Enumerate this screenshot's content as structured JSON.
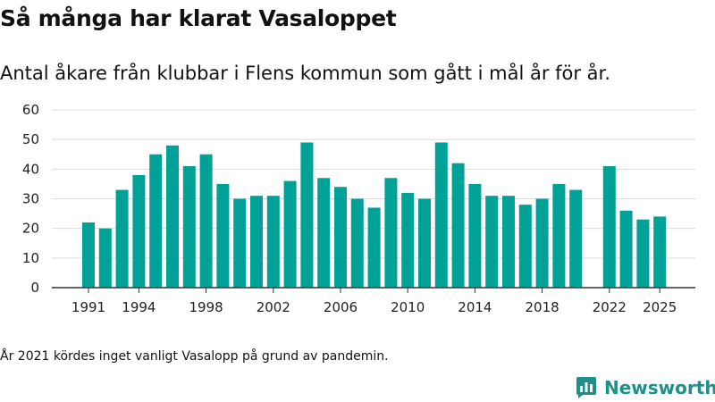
{
  "header": {
    "title": "Så många har klarat Vasaloppet",
    "subtitle": "Antal åkare från klubbar i Flens kommun som gått i mål år för år."
  },
  "footnote": "År 2021 kördes inget vanligt Vasalopp på grund av pandemin.",
  "brand": {
    "name": "Newsworthy",
    "icon": "newsworthy-logo-icon",
    "color": "#1f8f89"
  },
  "chart_data": {
    "type": "bar",
    "title": "",
    "xlabel": "",
    "ylabel": "",
    "ylim": [
      0,
      60
    ],
    "yticks": [
      0,
      10,
      20,
      30,
      40,
      50,
      60
    ],
    "xticks": [
      "1991",
      "1994",
      "1998",
      "2002",
      "2006",
      "2010",
      "2014",
      "2018",
      "2022",
      "2025"
    ],
    "grid": true,
    "bar_color": "#00a197",
    "categories": [
      "1991",
      "1992",
      "1993",
      "1994",
      "1995",
      "1996",
      "1997",
      "1998",
      "1999",
      "2000",
      "2001",
      "2002",
      "2003",
      "2004",
      "2005",
      "2006",
      "2007",
      "2008",
      "2009",
      "2010",
      "2011",
      "2012",
      "2013",
      "2014",
      "2015",
      "2016",
      "2017",
      "2018",
      "2019",
      "2020",
      "2021",
      "2022",
      "2023",
      "2024",
      "2025"
    ],
    "values": [
      22,
      20,
      33,
      38,
      45,
      48,
      41,
      45,
      35,
      30,
      31,
      31,
      36,
      49,
      37,
      34,
      30,
      27,
      37,
      32,
      30,
      49,
      42,
      35,
      31,
      31,
      28,
      30,
      35,
      33,
      null,
      41,
      26,
      23,
      24
    ]
  }
}
